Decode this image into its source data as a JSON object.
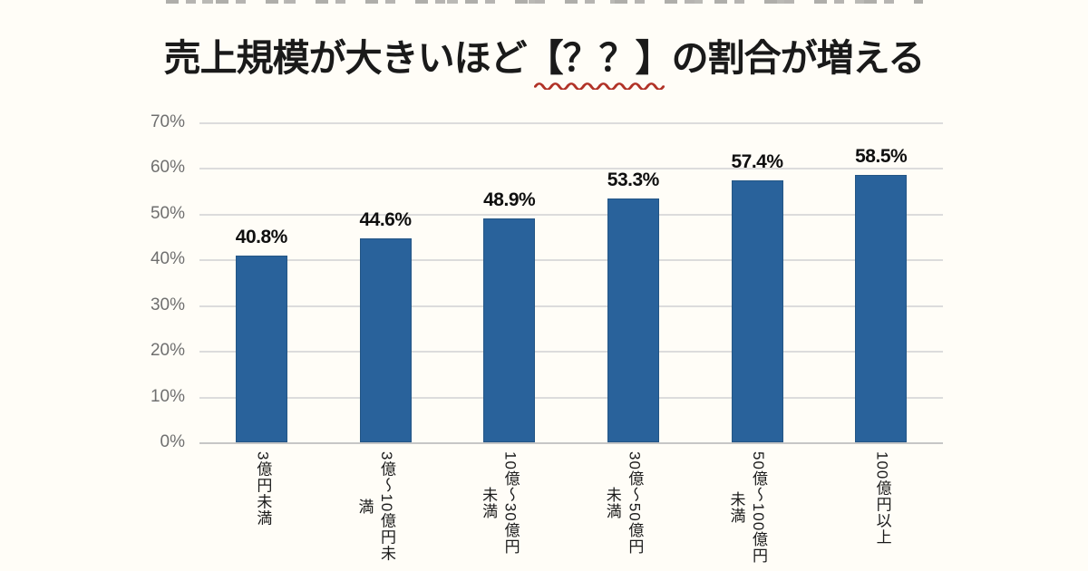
{
  "title": {
    "before": "売上規模が大きいほど",
    "highlight": "【？？】",
    "after": "の割合が増える",
    "text_color": "#1a1a1a",
    "underline_color": "#b13227"
  },
  "chart_data": {
    "type": "bar",
    "title": "売上規模が大きいほど【？？】の割合が増える",
    "categories": [
      "3億円未満",
      "3億～10億円未満",
      "10億～30億円未満",
      "30億～50億円未満",
      "50億～100億円未満",
      "100億円以上"
    ],
    "values": [
      40.8,
      44.6,
      48.9,
      53.3,
      57.4,
      58.5
    ],
    "bar_labels": [
      "40.8%",
      "44.6%",
      "48.9%",
      "53.3%",
      "57.4%",
      "58.5%"
    ],
    "category_display_lines": [
      [
        "3億円未満"
      ],
      [
        "3億～10億円未",
        "満"
      ],
      [
        "10億～30億円",
        "未満"
      ],
      [
        "30億～50億円",
        "未満"
      ],
      [
        "50億～100億円",
        "未満"
      ],
      [
        "100億円以上"
      ]
    ],
    "y_ticks": [
      {
        "value": 70,
        "label": "70%"
      },
      {
        "value": 60,
        "label": "60%"
      },
      {
        "value": 50,
        "label": "50%"
      },
      {
        "value": 40,
        "label": "40%"
      },
      {
        "value": 30,
        "label": "30%"
      },
      {
        "value": 20,
        "label": "20%"
      },
      {
        "value": 10,
        "label": "10%"
      },
      {
        "value": 0,
        "label": "0%"
      }
    ],
    "ylim": [
      0,
      70
    ],
    "xlabel": "",
    "ylabel": "",
    "legend": "none",
    "grid": "horizontal",
    "bar_color": "#29629b",
    "bar_border_color": "#245685",
    "gridline_color": "#dcdcdc",
    "axis_line_color": "#c6c6c6",
    "tick_label_color": "#6f6f6f",
    "data_label_color": "#0f0f0f"
  }
}
